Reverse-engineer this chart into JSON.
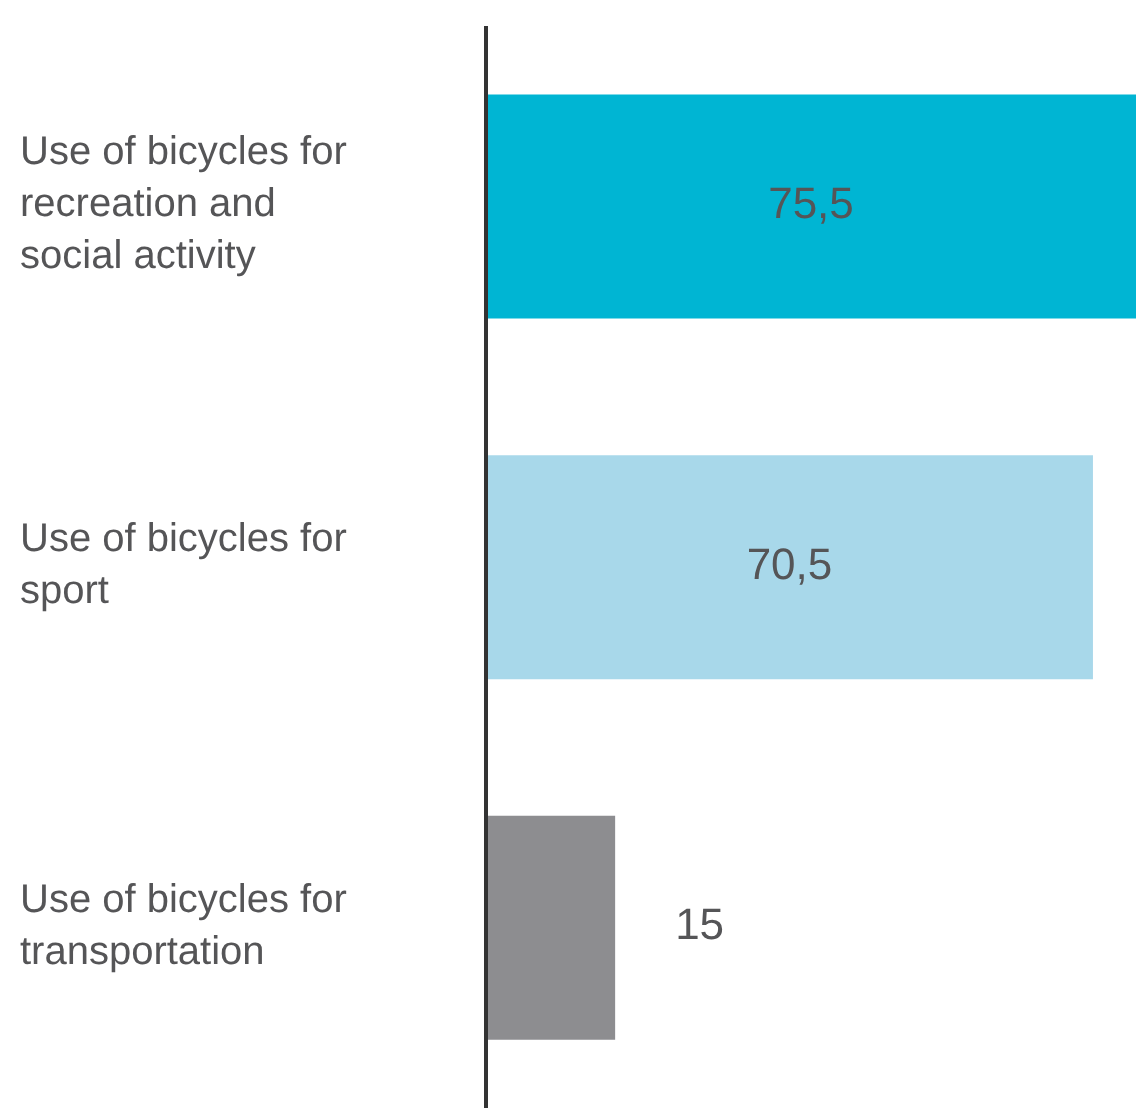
{
  "chart_data": {
    "type": "bar",
    "orientation": "horizontal",
    "categories": [
      "Use of bicycles for recreation and social activity",
      "Use of bicycles for sport",
      "Use of bicycles for transportation"
    ],
    "values": [
      75.5,
      70.5,
      15
    ],
    "colors": [
      "#00b5d3",
      "#a8d8ea",
      "#8d8d90"
    ],
    "value_labels": [
      "75,5",
      "70,5",
      "15"
    ],
    "xlim": [
      0,
      75.5
    ],
    "tick_labels": "y"
  }
}
